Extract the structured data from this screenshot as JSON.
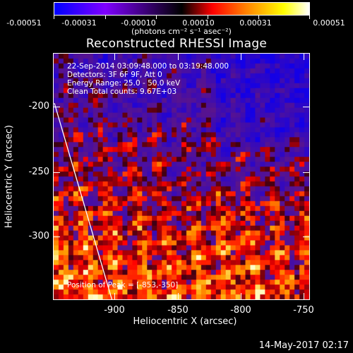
{
  "colorbar": {
    "tick_labels": [
      "-0.00051",
      "-0.00031",
      "-0.00010",
      "0.00010",
      "0.00031",
      "0.00051"
    ],
    "units_label": "(photons cm⁻² s⁻¹ asec⁻²)",
    "colors": [
      "#0000ff",
      "#7f00ff",
      "#000000",
      "#ff0000",
      "#ff8000",
      "#ffff00",
      "#ffffff"
    ]
  },
  "title": "Reconstructed RHESSI Image",
  "annotations": {
    "time_range": "22-Sep-2014 03:09:48.000 to 03:19:48.000",
    "detectors": "Detectors: 3F 6F 9F, Att 0",
    "energy": "Energy Range: 25.0 - 50.0 keV",
    "method": "Clean     Total counts: 9.67E+03",
    "peak": "Position of Peak = [-853,-350]"
  },
  "axes": {
    "xlabel": "Heliocentric X (arcsec)",
    "ylabel": "Heliocentric Y (arcsec)",
    "x_ticks": [
      "-900",
      "-850",
      "-800",
      "-750"
    ],
    "y_ticks": [
      "-200",
      "-250",
      "-300"
    ]
  },
  "footer_date": "14-May-2017 02:17",
  "limb_line_color": "#ffffff"
}
